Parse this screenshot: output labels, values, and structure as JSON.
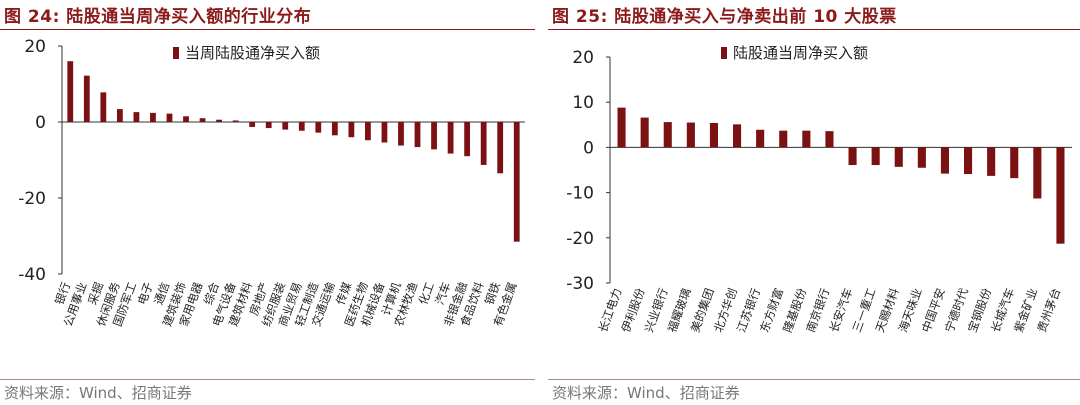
{
  "charts": [
    {
      "figure_label": "图 24:",
      "title_text": "陆股通当周净买入额的行业分布",
      "source": "资料来源：Wind、招商证券"
    },
    {
      "figure_label": "图 25:",
      "title_text": "陆股通净买入与净卖出前 10 大股票",
      "source": "资料来源：Wind、招商证券"
    }
  ],
  "chart_data": [
    {
      "type": "bar",
      "title": "图 24: 陆股通当周净买入额的行业分布",
      "legend": "当周陆股通净买入额",
      "legend_position": "top-center",
      "color": "#7b1113",
      "ylim": [
        -40,
        20
      ],
      "yticks": [
        20,
        0,
        -20,
        -40
      ],
      "grid": false,
      "categories": [
        "银行",
        "公用事业",
        "采掘",
        "休闲服务",
        "国防军工",
        "电子",
        "通信",
        "建筑装饰",
        "家用电器",
        "综合",
        "电气设备",
        "建筑材料",
        "房地产",
        "纺织服装",
        "商业贸易",
        "轻工制造",
        "交通运输",
        "传媒",
        "医药生物",
        "机械设备",
        "计算机",
        "农林牧渔",
        "化工",
        "汽车",
        "非银金融",
        "食品饮料",
        "钢铁",
        "有色金属"
      ],
      "values": [
        16,
        12.2,
        7.8,
        3.4,
        2.6,
        2.4,
        2.2,
        1.5,
        1.0,
        0.6,
        0.4,
        -1.3,
        -1.6,
        -2.0,
        -2.3,
        -2.8,
        -3.5,
        -4.0,
        -4.8,
        -5.4,
        -6.2,
        -6.6,
        -7.2,
        -8.3,
        -9.0,
        -11.3,
        -13.5,
        -31.5
      ]
    },
    {
      "type": "bar",
      "title": "图 25: 陆股通净买入与净卖出前 10 大股票",
      "legend": "陆股通当周净买入额",
      "legend_position": "top-center",
      "color": "#7b1113",
      "ylim": [
        -30,
        20
      ],
      "yticks": [
        20,
        10,
        0,
        -10,
        -20,
        -30
      ],
      "grid": false,
      "categories": [
        "长江电力",
        "伊利股份",
        "兴业银行",
        "福耀玻璃",
        "美的集团",
        "北方华创",
        "江苏银行",
        "东方财富",
        "隆基股份",
        "南京银行",
        "长安汽车",
        "三一重工",
        "天赐材料",
        "海天味业",
        "中国平安",
        "宁德时代",
        "宝钢股份",
        "长城汽车",
        "紫金矿业",
        "贵州茅台"
      ],
      "values": [
        8.8,
        6.6,
        5.6,
        5.5,
        5.4,
        5.1,
        3.9,
        3.7,
        3.7,
        3.6,
        -3.9,
        -3.9,
        -4.3,
        -4.5,
        -5.8,
        -5.9,
        -6.3,
        -6.8,
        -11.3,
        -21.3
      ]
    }
  ]
}
